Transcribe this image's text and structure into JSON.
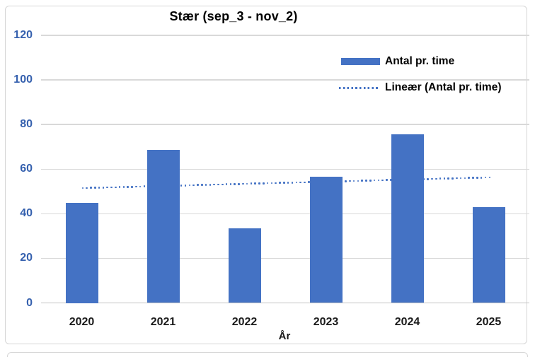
{
  "chart_data": {
    "type": "bar",
    "title": "Stær (sep_3 - nov_2)",
    "xlabel": "År",
    "categories": [
      "2020",
      "2021",
      "2022",
      "2023",
      "2024",
      "2025"
    ],
    "series": [
      {
        "name": "Antal pr. time",
        "values": [
          45,
          68.5,
          33.5,
          56.5,
          75.5,
          43
        ]
      }
    ],
    "trendline": {
      "name": "Lineær (Antal pr. time)",
      "style": "dotted",
      "start_value": 51.5,
      "end_value": 56.3
    },
    "ylim": [
      0,
      120
    ],
    "yticks": [
      0,
      20,
      40,
      60,
      80,
      100,
      120
    ],
    "grid": true,
    "legend_position": "inside-top-right",
    "colors": {
      "bar": "#4472C4",
      "trend": "#4472C4",
      "y_tick_label": "#3560AE",
      "x_tick_label": "#1A1A1A",
      "gridline": "#D9D9D9",
      "baseline": "#C4C4C4",
      "frame_border": "#D6D6D6",
      "title": "#000000"
    }
  }
}
